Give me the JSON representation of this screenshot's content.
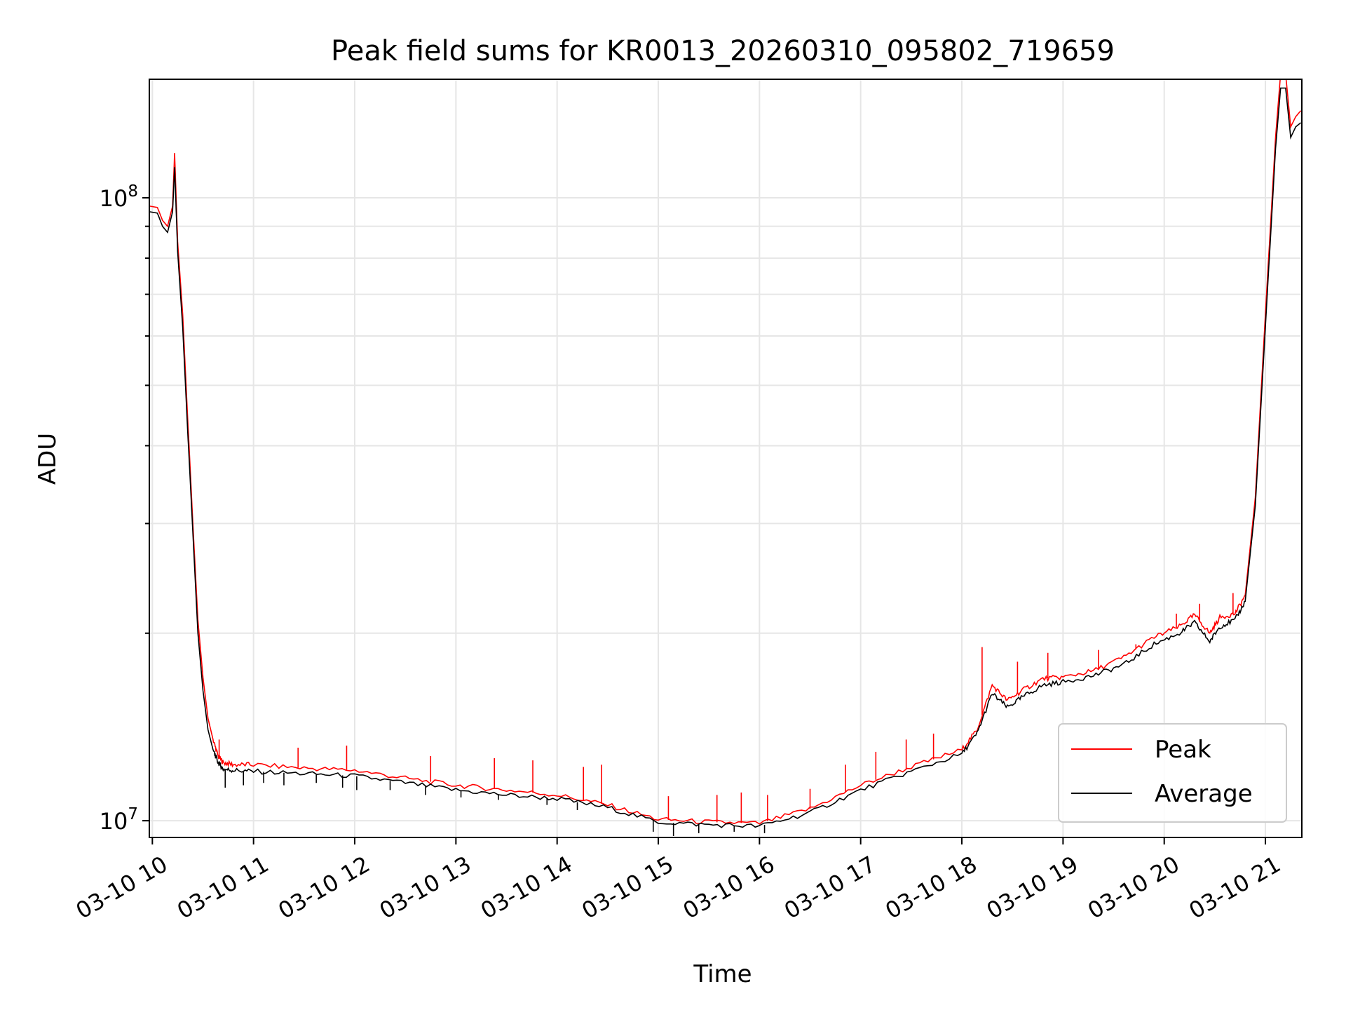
{
  "chart_data": {
    "type": "line",
    "title": "Peak field sums for KR0013_20260310_095802_719659",
    "xlabel": "Time",
    "ylabel": "ADU",
    "yscale": "log",
    "xlim": [
      9.97,
      21.36
    ],
    "ylim": [
      9400000,
      155000000
    ],
    "grid": true,
    "legend_position": "lower-right",
    "x_ticks": [
      {
        "value": 10,
        "label": "03-10 10"
      },
      {
        "value": 11,
        "label": "03-10 11"
      },
      {
        "value": 12,
        "label": "03-10 12"
      },
      {
        "value": 13,
        "label": "03-10 13"
      },
      {
        "value": 14,
        "label": "03-10 14"
      },
      {
        "value": 15,
        "label": "03-10 15"
      },
      {
        "value": 16,
        "label": "03-10 16"
      },
      {
        "value": 17,
        "label": "03-10 17"
      },
      {
        "value": 18,
        "label": "03-10 18"
      },
      {
        "value": 19,
        "label": "03-10 19"
      },
      {
        "value": 20,
        "label": "03-10 20"
      },
      {
        "value": 21,
        "label": "03-10 21"
      }
    ],
    "y_major_ticks": [
      {
        "value": 10000000,
        "base": "10",
        "exp": "7"
      },
      {
        "value": 100000000,
        "base": "10",
        "exp": "8"
      }
    ],
    "y_minor_ticks": [
      20000000,
      30000000,
      40000000,
      50000000,
      60000000,
      70000000,
      80000000,
      90000000
    ],
    "series": [
      {
        "name": "Peak",
        "color": "#ff0000",
        "x": [
          9.97,
          10.05,
          10.1,
          10.15,
          10.2,
          10.22,
          10.25,
          10.3,
          10.35,
          10.4,
          10.45,
          10.5,
          10.55,
          10.6,
          10.65,
          10.7,
          10.8,
          11.0,
          11.5,
          12.0,
          12.5,
          13.0,
          13.5,
          14.0,
          14.5,
          15.0,
          15.5,
          16.0,
          16.5,
          17.0,
          17.5,
          18.0,
          18.15,
          18.3,
          18.45,
          18.6,
          18.8,
          19.0,
          19.3,
          19.6,
          19.9,
          20.15,
          20.3,
          20.45,
          20.55,
          20.7,
          20.8,
          20.9,
          21.0,
          21.1,
          21.15,
          21.2,
          21.25,
          21.3,
          21.35
        ],
        "y": [
          97000000,
          96500000,
          92000000,
          90000000,
          97000000,
          118000000,
          85000000,
          65000000,
          44000000,
          30000000,
          21000000,
          17000000,
          14600000,
          13500000,
          12700000,
          12400000,
          12300000,
          12300000,
          12150000,
          12050000,
          11700000,
          11400000,
          11200000,
          11000000,
          10600000,
          10050000,
          9950000,
          9900000,
          10450000,
          11400000,
          12200000,
          13000000,
          14000000,
          16500000,
          15600000,
          16200000,
          16900000,
          17000000,
          17400000,
          18300000,
          19700000,
          20500000,
          21400000,
          20000000,
          21200000,
          21500000,
          23000000,
          33000000,
          65000000,
          125000000,
          158000000,
          158000000,
          130000000,
          135000000,
          138000000
        ],
        "spikes": [
          {
            "x": 10.66,
            "y": 13500000
          },
          {
            "x": 11.44,
            "y": 13100000
          },
          {
            "x": 11.92,
            "y": 13200000
          },
          {
            "x": 12.75,
            "y": 12700000
          },
          {
            "x": 13.38,
            "y": 12600000
          },
          {
            "x": 13.76,
            "y": 12500000
          },
          {
            "x": 14.26,
            "y": 12200000
          },
          {
            "x": 14.44,
            "y": 12300000
          },
          {
            "x": 15.1,
            "y": 10950000
          },
          {
            "x": 15.58,
            "y": 11000000
          },
          {
            "x": 15.82,
            "y": 11100000
          },
          {
            "x": 16.08,
            "y": 11000000
          },
          {
            "x": 16.5,
            "y": 11250000
          },
          {
            "x": 16.85,
            "y": 12300000
          },
          {
            "x": 17.15,
            "y": 12900000
          },
          {
            "x": 17.45,
            "y": 13500000
          },
          {
            "x": 17.72,
            "y": 13800000
          },
          {
            "x": 18.2,
            "y": 19000000
          },
          {
            "x": 18.55,
            "y": 18000000
          },
          {
            "x": 18.85,
            "y": 18600000
          },
          {
            "x": 19.35,
            "y": 18800000
          },
          {
            "x": 19.72,
            "y": 19200000
          },
          {
            "x": 20.12,
            "y": 21500000
          },
          {
            "x": 20.35,
            "y": 22300000
          },
          {
            "x": 20.68,
            "y": 23200000
          }
        ]
      },
      {
        "name": "Average",
        "color": "#000000",
        "x": [
          9.97,
          10.05,
          10.1,
          10.15,
          10.2,
          10.22,
          10.25,
          10.3,
          10.35,
          10.4,
          10.45,
          10.5,
          10.55,
          10.6,
          10.65,
          10.7,
          10.8,
          11.0,
          11.5,
          12.0,
          12.5,
          13.0,
          13.5,
          14.0,
          14.5,
          15.0,
          15.5,
          16.0,
          16.5,
          17.0,
          17.5,
          18.0,
          18.15,
          18.3,
          18.45,
          18.6,
          18.8,
          19.0,
          19.3,
          19.6,
          19.9,
          20.15,
          20.3,
          20.45,
          20.55,
          20.7,
          20.8,
          20.9,
          21.0,
          21.1,
          21.15,
          21.2,
          21.25,
          21.3,
          21.35
        ],
        "y": [
          95000000,
          94500000,
          90000000,
          88000000,
          95000000,
          112000000,
          82000000,
          62000000,
          42000000,
          29000000,
          20000000,
          16200000,
          14000000,
          13000000,
          12400000,
          12100000,
          12050000,
          12000000,
          11900000,
          11800000,
          11500000,
          11200000,
          11000000,
          10850000,
          10500000,
          9950000,
          9850000,
          9800000,
          10300000,
          11200000,
          12000000,
          12800000,
          13800000,
          16000000,
          15200000,
          15800000,
          16500000,
          16700000,
          17100000,
          17800000,
          19200000,
          20000000,
          20800000,
          19400000,
          20500000,
          21000000,
          22500000,
          32000000,
          62000000,
          120000000,
          150000000,
          150000000,
          125000000,
          130000000,
          132000000
        ],
        "dips": [
          {
            "x": 10.72,
            "y": 11300000
          },
          {
            "x": 10.9,
            "y": 11400000
          },
          {
            "x": 11.1,
            "y": 11500000
          },
          {
            "x": 11.3,
            "y": 11400000
          },
          {
            "x": 11.62,
            "y": 11500000
          },
          {
            "x": 11.88,
            "y": 11300000
          },
          {
            "x": 12.02,
            "y": 11200000
          },
          {
            "x": 12.35,
            "y": 11200000
          },
          {
            "x": 12.7,
            "y": 11000000
          },
          {
            "x": 13.05,
            "y": 10900000
          },
          {
            "x": 13.42,
            "y": 10800000
          },
          {
            "x": 13.9,
            "y": 10600000
          },
          {
            "x": 14.2,
            "y": 10400000
          },
          {
            "x": 14.95,
            "y": 9600000
          },
          {
            "x": 15.15,
            "y": 9450000
          },
          {
            "x": 15.4,
            "y": 9550000
          },
          {
            "x": 15.75,
            "y": 9600000
          },
          {
            "x": 16.05,
            "y": 9550000
          }
        ]
      }
    ],
    "legend": [
      {
        "label": "Peak",
        "color": "#ff0000"
      },
      {
        "label": "Average",
        "color": "#000000"
      }
    ]
  }
}
